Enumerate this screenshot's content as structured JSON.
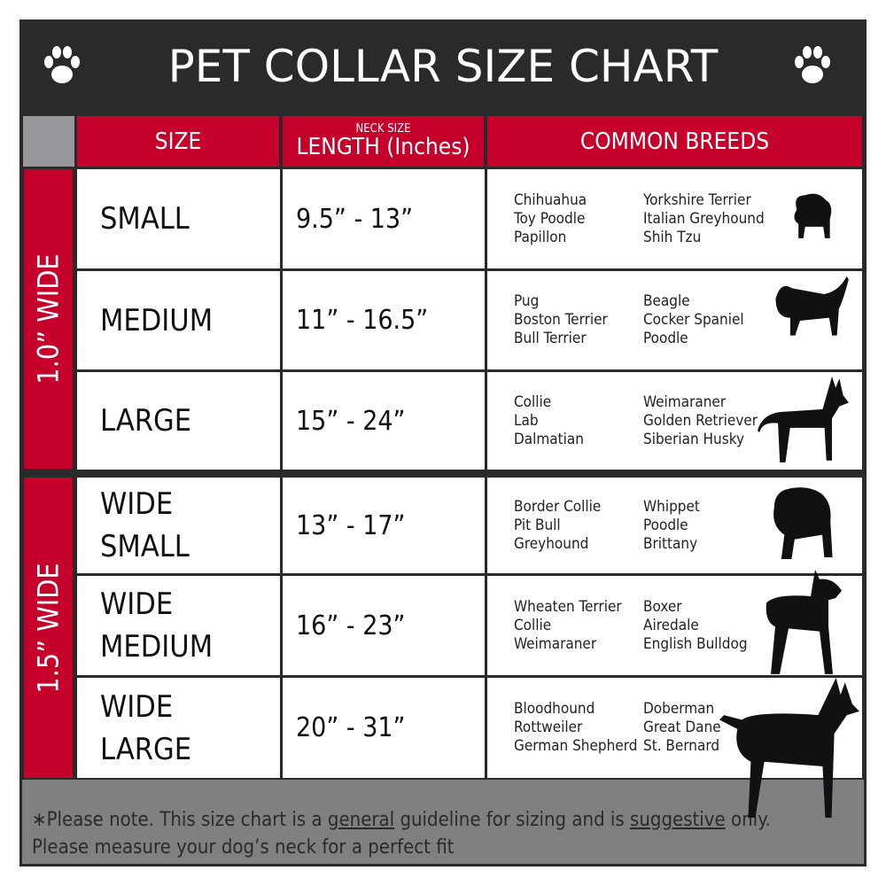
{
  "title": "PET COLLAR SIZE CHART",
  "header": {
    "size": "SIZE",
    "length_small": "NECK SIZE",
    "length": "LENGTH (Inches)",
    "breeds": "COMMON BREEDS"
  },
  "bands": [
    {
      "label": "1.0” WIDE"
    },
    {
      "label": "1.5” WIDE"
    }
  ],
  "rows": [
    {
      "size": "SMALL",
      "length": "9.5” - 13”",
      "breeds1": [
        "Chihuahua",
        "Toy Poodle",
        "Papillon"
      ],
      "breeds2": [
        "Yorkshire Terrier",
        "Italian Greyhound",
        "Shih Tzu"
      ]
    },
    {
      "size": "MEDIUM",
      "length": "11” - 16.5”",
      "breeds1": [
        "Pug",
        "Boston Terrier",
        "Bull Terrier"
      ],
      "breeds2": [
        "Beagle",
        "Cocker Spaniel",
        "Poodle"
      ]
    },
    {
      "size": "LARGE",
      "length": "15” - 24”",
      "breeds1": [
        "Collie",
        "Lab",
        "Dalmatian"
      ],
      "breeds2": [
        "Weimaraner",
        "Golden Retriever",
        "Siberian Husky"
      ]
    },
    {
      "size": "WIDE SMALL",
      "length": "13” - 17”",
      "breeds1": [
        "Border Collie",
        "Pit Bull",
        "Greyhound"
      ],
      "breeds2": [
        "Whippet",
        "Poodle",
        "Brittany"
      ]
    },
    {
      "size": "WIDE MEDIUM",
      "length": "16” - 23”",
      "breeds1": [
        "Wheaten Terrier",
        "Collie",
        "Weimaraner"
      ],
      "breeds2": [
        "Boxer",
        "Airedale",
        "English Bulldog"
      ]
    },
    {
      "size": "WIDE LARGE",
      "length": "20” - 31”",
      "breeds1": [
        "Bloodhound",
        "Rottweiler",
        "German Shepherd"
      ],
      "breeds2": [
        "Doberman",
        "Great Dane",
        "St. Bernard"
      ]
    }
  ],
  "footer": {
    "p1": "∗Please note. This size chart is a ",
    "u1": "general",
    "p2": " guideline for sizing and is ",
    "u2": "suggestive",
    "p3": " only.",
    "line2": "Please measure your dog’s neck for a perfect fit"
  },
  "colors": {
    "red": "#c4002b",
    "dark": "#2a2a2a",
    "gray": "#808083"
  }
}
